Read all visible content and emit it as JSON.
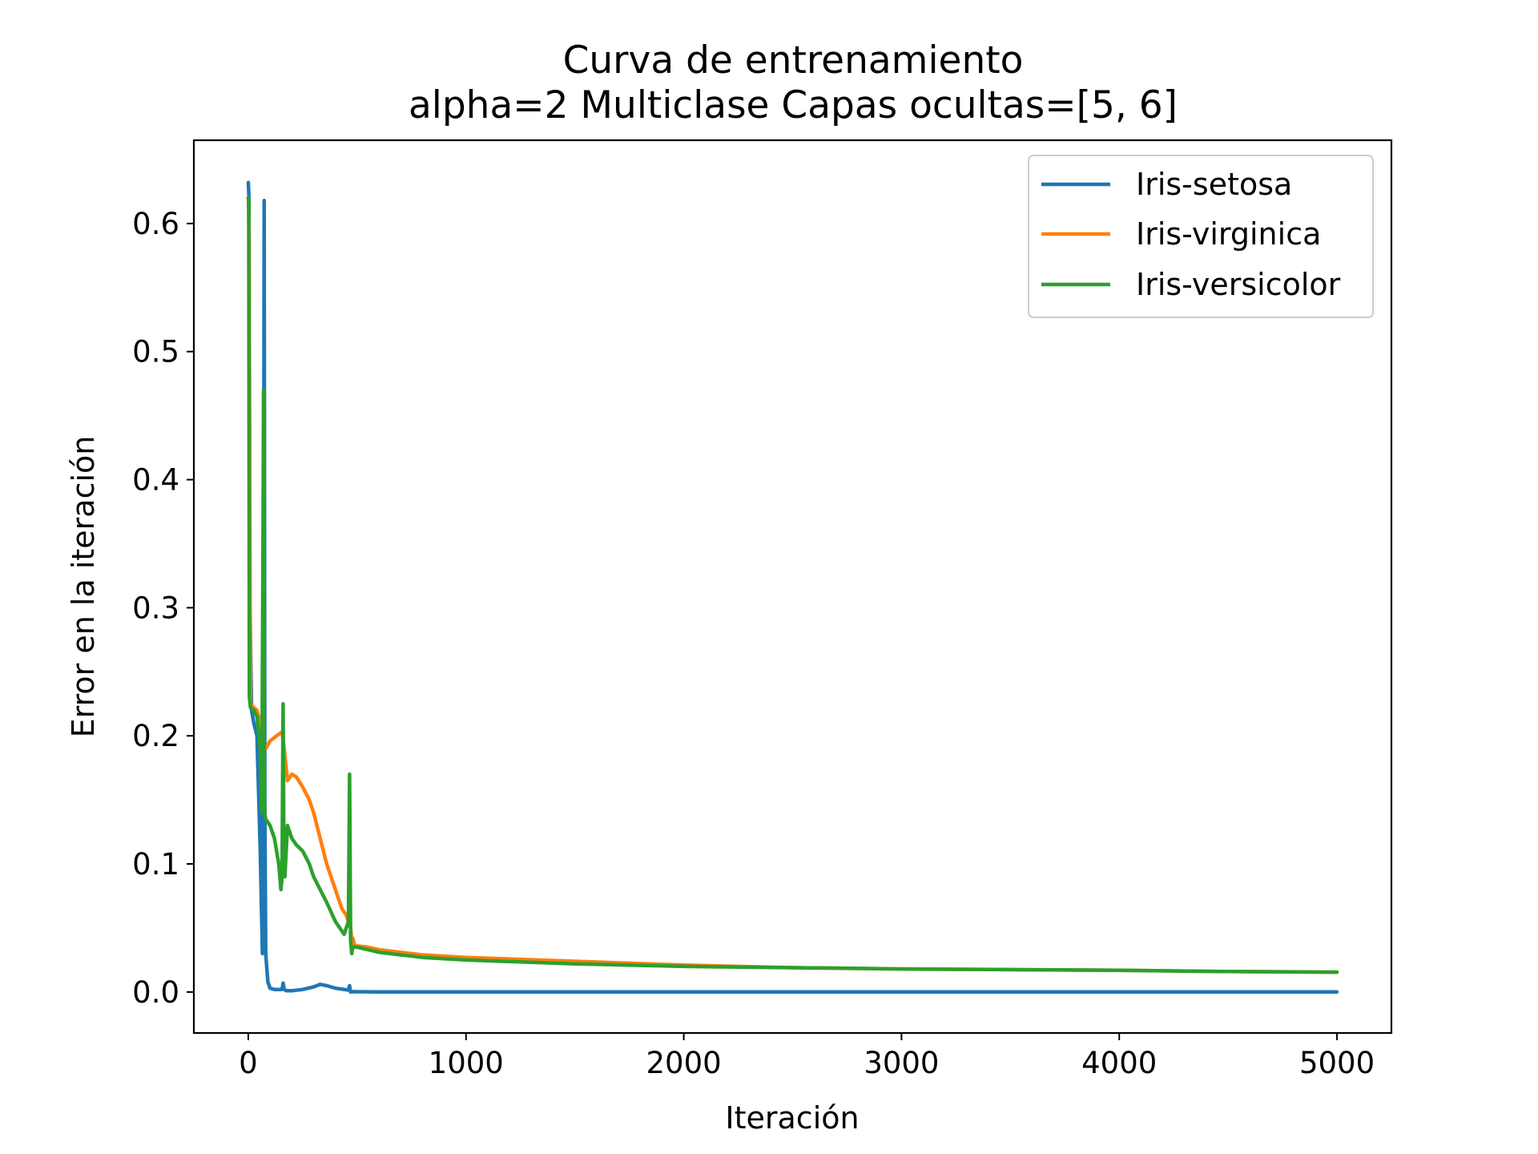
{
  "chart_data": {
    "type": "line",
    "title": "Curva de entrenamiento",
    "subtitle": "alpha=2 Multiclase Capas ocultas=[5, 6]",
    "xlabel": "Iteración",
    "ylabel": "Error en la iteración",
    "xlim": [
      -250,
      5250
    ],
    "ylim": [
      -0.032,
      0.665
    ],
    "xticks": [
      0,
      1000,
      2000,
      3000,
      4000,
      5000
    ],
    "xtick_labels": [
      "0",
      "1000",
      "2000",
      "3000",
      "4000",
      "5000"
    ],
    "yticks": [
      0.0,
      0.1,
      0.2,
      0.3,
      0.4,
      0.5,
      0.6
    ],
    "ytick_labels": [
      "0.0",
      "0.1",
      "0.2",
      "0.3",
      "0.4",
      "0.5",
      "0.6"
    ],
    "grid": false,
    "legend_position": "top-right",
    "series": [
      {
        "name": "Iris-setosa",
        "color": "#1f77b4",
        "x": [
          0,
          3,
          8,
          15,
          25,
          40,
          55,
          65,
          70,
          73,
          76,
          80,
          90,
          100,
          120,
          140,
          155,
          160,
          165,
          175,
          200,
          250,
          300,
          330,
          360,
          400,
          440,
          460,
          465,
          470,
          480,
          500,
          600,
          800,
          1000,
          1500,
          2000,
          3000,
          4000,
          5000
        ],
        "y": [
          0.632,
          0.62,
          0.3,
          0.22,
          0.21,
          0.2,
          0.11,
          0.03,
          0.3,
          0.618,
          0.15,
          0.03,
          0.008,
          0.003,
          0.002,
          0.002,
          0.002,
          0.007,
          0.002,
          0.001,
          0.001,
          0.002,
          0.004,
          0.006,
          0.005,
          0.003,
          0.002,
          0.0015,
          0.005,
          0.0,
          0.0003,
          0.0002,
          0.0001,
          0.0001,
          0.0001,
          0.0001,
          0.0001,
          0.0001,
          0.0001,
          0.0001
        ]
      },
      {
        "name": "Iris-virginica",
        "color": "#ff7f0e",
        "x": [
          0,
          3,
          10,
          25,
          40,
          55,
          65,
          72,
          80,
          100,
          130,
          155,
          165,
          180,
          200,
          220,
          250,
          280,
          300,
          330,
          360,
          400,
          430,
          450,
          460,
          470,
          475,
          480,
          490,
          500,
          550,
          600,
          700,
          800,
          1000,
          1500,
          2000,
          2500,
          3000,
          3500,
          4000,
          4500,
          5000
        ],
        "y": [
          0.62,
          0.6,
          0.225,
          0.222,
          0.22,
          0.21,
          0.19,
          0.19,
          0.19,
          0.196,
          0.2,
          0.203,
          0.19,
          0.165,
          0.17,
          0.168,
          0.16,
          0.15,
          0.14,
          0.12,
          0.1,
          0.08,
          0.065,
          0.06,
          0.055,
          0.05,
          0.04,
          0.042,
          0.036,
          0.036,
          0.035,
          0.033,
          0.031,
          0.029,
          0.027,
          0.024,
          0.021,
          0.019,
          0.018,
          0.0175,
          0.017,
          0.016,
          0.0155
        ]
      },
      {
        "name": "Iris-versicolor",
        "color": "#2ca02c",
        "x": [
          0,
          2,
          5,
          10,
          25,
          40,
          55,
          62,
          68,
          70,
          72,
          75,
          80,
          100,
          120,
          140,
          150,
          155,
          160,
          163,
          168,
          180,
          200,
          220,
          250,
          280,
          300,
          330,
          360,
          400,
          420,
          440,
          450,
          460,
          465,
          470,
          475,
          480,
          490,
          500,
          550,
          600,
          700,
          800,
          1000,
          1500,
          2000,
          2500,
          3000,
          3500,
          4000,
          4500,
          5000
        ],
        "y": [
          0.62,
          0.618,
          0.23,
          0.222,
          0.22,
          0.215,
          0.19,
          0.14,
          0.36,
          0.47,
          0.2,
          0.14,
          0.135,
          0.13,
          0.12,
          0.1,
          0.08,
          0.09,
          0.225,
          0.12,
          0.09,
          0.13,
          0.12,
          0.115,
          0.11,
          0.1,
          0.09,
          0.08,
          0.07,
          0.055,
          0.05,
          0.045,
          0.05,
          0.055,
          0.17,
          0.04,
          0.03,
          0.035,
          0.035,
          0.035,
          0.033,
          0.031,
          0.029,
          0.027,
          0.025,
          0.022,
          0.02,
          0.019,
          0.018,
          0.0175,
          0.017,
          0.016,
          0.0155
        ]
      }
    ]
  }
}
